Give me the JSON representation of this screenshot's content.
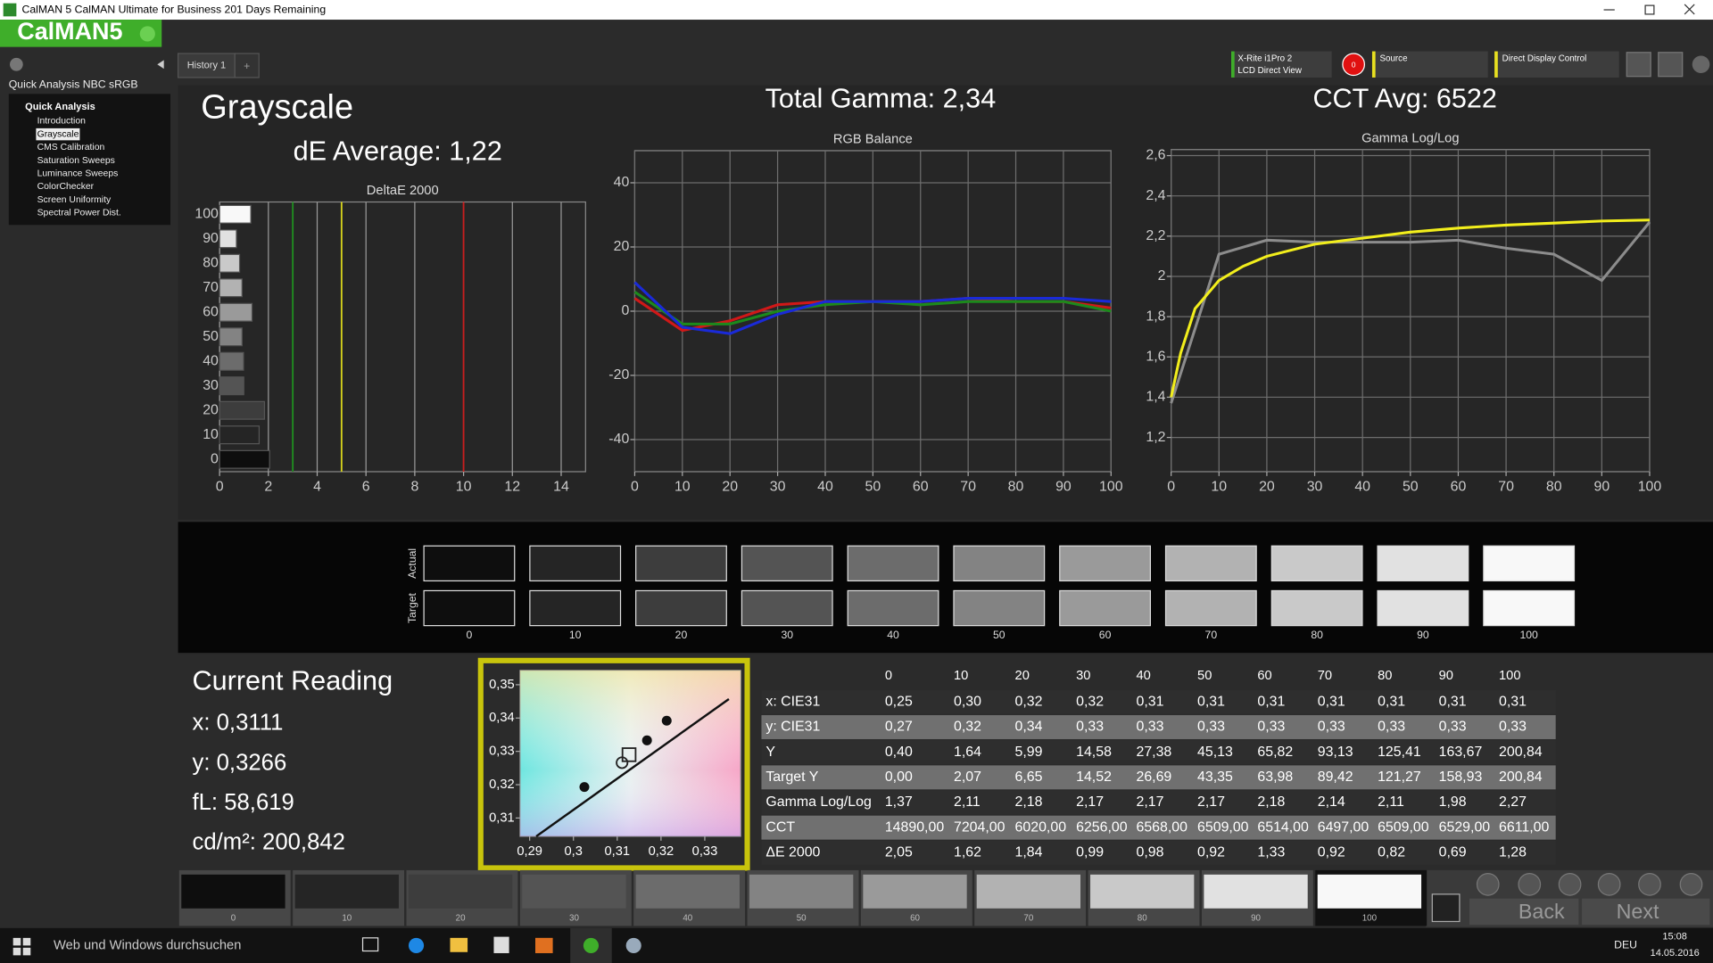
{
  "window": {
    "title": "CalMAN 5 CalMAN Ultimate for Business 201 Days Remaining",
    "logo": "CalMAN5"
  },
  "toolbar": {
    "tab": "History 1",
    "tab_add": "+",
    "meter": [
      "X-Rite i1Pro 2",
      "LCD Direct View"
    ],
    "readings": "0",
    "source": "Source",
    "display": "Direct Display Control"
  },
  "sidebar": {
    "title": "Quick Analysis NBC sRGB",
    "group": "Quick Analysis",
    "selected": 1,
    "items": [
      "Introduction",
      "Grayscale",
      "CMS Calibration",
      "Saturation Sweeps",
      "Luminance Sweeps",
      "ColorChecker",
      "Screen Uniformity",
      "Spectral Power Dist."
    ]
  },
  "page": {
    "heading": "Grayscale",
    "de_average": "dE Average: 1,22",
    "total_gamma": "Total Gamma: 2,34",
    "cct_avg": "CCT Avg: 6522"
  },
  "chart_data": [
    {
      "type": "bar",
      "orientation": "horizontal",
      "title": "DeltaE 2000",
      "categories": [
        "0",
        "10",
        "20",
        "30",
        "40",
        "50",
        "60",
        "70",
        "80",
        "90",
        "100"
      ],
      "values": [
        2.05,
        1.62,
        1.84,
        0.99,
        0.98,
        0.92,
        1.33,
        0.92,
        0.82,
        0.69,
        1.28
      ],
      "xlim": [
        0,
        15
      ],
      "xticks": [
        0,
        2,
        4,
        6,
        8,
        10,
        12,
        14
      ],
      "grid": "x",
      "reference_lines": [
        {
          "value": 3,
          "color": "#1f8f1f"
        },
        {
          "value": 5,
          "color": "#d6d21c"
        },
        {
          "value": 10,
          "color": "#c81e1e"
        }
      ]
    },
    {
      "type": "line",
      "title": "RGB Balance",
      "x": [
        0,
        10,
        20,
        30,
        40,
        50,
        60,
        70,
        80,
        90,
        100
      ],
      "series": [
        {
          "color": "#d01818",
          "values": [
            4,
            -6,
            -3,
            2,
            3,
            3,
            3,
            4,
            3,
            3,
            1
          ]
        },
        {
          "color": "#1c8a1c",
          "values": [
            6,
            -4,
            -4,
            0,
            2,
            3,
            2,
            3,
            3,
            3,
            0
          ]
        },
        {
          "color": "#1a2ad8",
          "values": [
            9,
            -5,
            -7,
            -1,
            3,
            3,
            3,
            4,
            4,
            4,
            3
          ]
        }
      ],
      "xlim": [
        0,
        100
      ],
      "xticks": [
        0,
        10,
        20,
        30,
        40,
        50,
        60,
        70,
        80,
        90,
        100
      ],
      "ylim": [
        -50,
        50
      ],
      "yticks": [
        -40,
        -20,
        0,
        20,
        40
      ],
      "grid": "both"
    },
    {
      "type": "line",
      "title": "Gamma Log/Log",
      "x": [
        0,
        10,
        20,
        30,
        40,
        50,
        60,
        70,
        80,
        90,
        100
      ],
      "series": [
        {
          "color": "#8c8c8c",
          "values": [
            1.37,
            2.11,
            2.18,
            2.17,
            2.17,
            2.17,
            2.18,
            2.14,
            2.11,
            1.98,
            2.27
          ]
        },
        {
          "color": "#f2ee1c",
          "x": [
            0,
            2,
            5,
            10,
            15,
            20,
            30,
            40,
            50,
            60,
            70,
            80,
            90,
            100
          ],
          "values": [
            1.4,
            1.62,
            1.84,
            1.98,
            2.05,
            2.1,
            2.16,
            2.19,
            2.22,
            2.24,
            2.255,
            2.265,
            2.275,
            2.28
          ]
        }
      ],
      "xlim": [
        0,
        100
      ],
      "xticks": [
        0,
        10,
        20,
        30,
        40,
        50,
        60,
        70,
        80,
        90,
        100
      ],
      "ylim": [
        1.03,
        2.63
      ],
      "yticks": [
        {
          "value": 1.2,
          "label": "1,2"
        },
        {
          "value": 1.4,
          "label": "1,4"
        },
        {
          "value": 1.6,
          "label": "1,6"
        },
        {
          "value": 1.8,
          "label": "1,8"
        },
        2,
        {
          "value": 2.2,
          "label": "2,2"
        },
        {
          "value": 2.4,
          "label": "2,4"
        },
        {
          "value": 2.6,
          "label": "2,6"
        }
      ],
      "grid": "both"
    },
    {
      "type": "scatter",
      "xlim": [
        0.2878,
        0.3382
      ],
      "ylim": [
        0.3045,
        0.3543
      ],
      "xticks": [
        {
          "value": 0.29,
          "label": "0,29"
        },
        {
          "value": 0.3,
          "label": "0,3"
        },
        {
          "value": 0.31,
          "label": "0,31"
        },
        {
          "value": 0.32,
          "label": "0,32"
        },
        {
          "value": 0.33,
          "label": "0,33"
        }
      ],
      "yticks": [
        {
          "value": 0.31,
          "label": "0,31"
        },
        {
          "value": 0.32,
          "label": "0,32"
        },
        {
          "value": 0.33,
          "label": "0,33"
        },
        {
          "value": 0.34,
          "label": "0,34"
        },
        {
          "value": 0.35,
          "label": "0,35"
        }
      ],
      "points": {
        "color": "#111111",
        "x": [
          0.3025,
          0.3168,
          0.3213
        ],
        "y": [
          0.3193,
          0.3333,
          0.3392
        ]
      },
      "target": {
        "x": 0.3127,
        "y": 0.329
      },
      "current": {
        "x": 0.3111,
        "y": 0.3266
      },
      "locus": {
        "color": "#111111",
        "x": [
          0.2915,
          0.3355
        ],
        "y": [
          0.3045,
          0.3457
        ]
      }
    }
  ],
  "swatches": {
    "row_labels": [
      "Actual",
      "Target"
    ]
  },
  "levels": [
    "0",
    "10",
    "20",
    "30",
    "40",
    "50",
    "60",
    "70",
    "80",
    "90",
    "100"
  ],
  "current_reading": {
    "title": "Current Reading",
    "lines": [
      "x: 0,3111",
      "y: 0,3266",
      "fL: 58,619",
      "cd/m²: 200,842"
    ]
  },
  "table": {
    "rows": [
      {
        "label": "x: CIE31",
        "cells": [
          "0,25",
          "0,30",
          "0,32",
          "0,32",
          "0,31",
          "0,31",
          "0,31",
          "0,31",
          "0,31",
          "0,31",
          "0,31"
        ]
      },
      {
        "label": "y: CIE31",
        "cells": [
          "0,27",
          "0,32",
          "0,34",
          "0,33",
          "0,33",
          "0,33",
          "0,33",
          "0,33",
          "0,33",
          "0,33",
          "0,33"
        ]
      },
      {
        "label": "Y",
        "cells": [
          "0,40",
          "1,64",
          "5,99",
          "14,58",
          "27,38",
          "45,13",
          "65,82",
          "93,13",
          "125,41",
          "163,67",
          "200,84"
        ]
      },
      {
        "label": "Target Y",
        "cells": [
          "0,00",
          "2,07",
          "6,65",
          "14,52",
          "26,69",
          "43,35",
          "63,98",
          "89,42",
          "121,27",
          "158,93",
          "200,84"
        ]
      },
      {
        "label": "Gamma Log/Log",
        "cells": [
          "1,37",
          "2,11",
          "2,18",
          "2,17",
          "2,17",
          "2,17",
          "2,18",
          "2,14",
          "2,11",
          "1,98",
          "2,27"
        ]
      },
      {
        "label": "CCT",
        "cells": [
          "14890,00",
          "7204,00",
          "6020,00",
          "6256,00",
          "6568,00",
          "6509,00",
          "6514,00",
          "6497,00",
          "6509,00",
          "6529,00",
          "6611,00"
        ]
      },
      {
        "label": "ΔE 2000",
        "cells": [
          "2,05",
          "1,62",
          "1,84",
          "0,99",
          "0,98",
          "0,92",
          "1,33",
          "0,92",
          "0,82",
          "0,69",
          "1,28"
        ]
      }
    ]
  },
  "navigation": {
    "back": "Back",
    "next": "Next"
  },
  "taskbar": {
    "search": "Web und Windows durchsuchen",
    "language": "DEU",
    "time": "15:08",
    "date": "14.05.2016"
  }
}
